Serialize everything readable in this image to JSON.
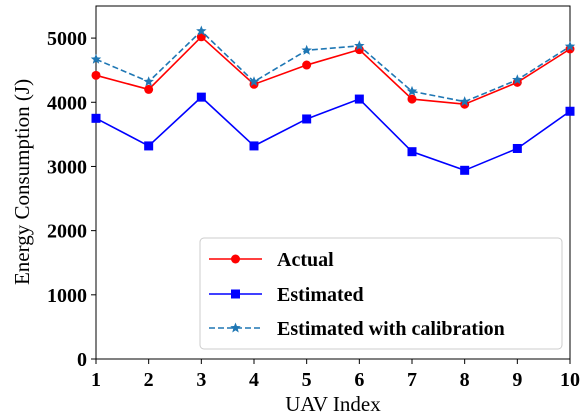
{
  "chart_data": {
    "type": "line",
    "title": "",
    "xlabel": "UAV Index",
    "ylabel": "Energy Consumption (J)",
    "x": [
      1,
      2,
      3,
      4,
      5,
      6,
      7,
      8,
      9,
      10
    ],
    "xlim": [
      1,
      10
    ],
    "ylim": [
      0,
      5500
    ],
    "x_ticks": [
      "1",
      "2",
      "3",
      "4",
      "5",
      "6",
      "7",
      "8",
      "9",
      "10"
    ],
    "y_ticks": [
      "0",
      "1000",
      "2000",
      "3000",
      "4000",
      "5000"
    ],
    "grid": false,
    "legend_position": "lower-right",
    "series": [
      {
        "name": "Actual",
        "color": "#ff0000",
        "marker": "circle",
        "line_style": "solid",
        "values": [
          4420,
          4200,
          5020,
          4280,
          4580,
          4820,
          4050,
          3970,
          4310,
          4830
        ]
      },
      {
        "name": "Estimated",
        "color": "#0000ff",
        "marker": "square",
        "line_style": "solid",
        "values": [
          3750,
          3320,
          4080,
          3320,
          3740,
          4050,
          3230,
          2940,
          3280,
          3860
        ]
      },
      {
        "name": "Estimated with calibration",
        "color": "#1f77b4",
        "marker": "star",
        "line_style": "dashed",
        "values": [
          4670,
          4320,
          5110,
          4320,
          4810,
          4880,
          4170,
          4010,
          4350,
          4870
        ]
      }
    ]
  }
}
